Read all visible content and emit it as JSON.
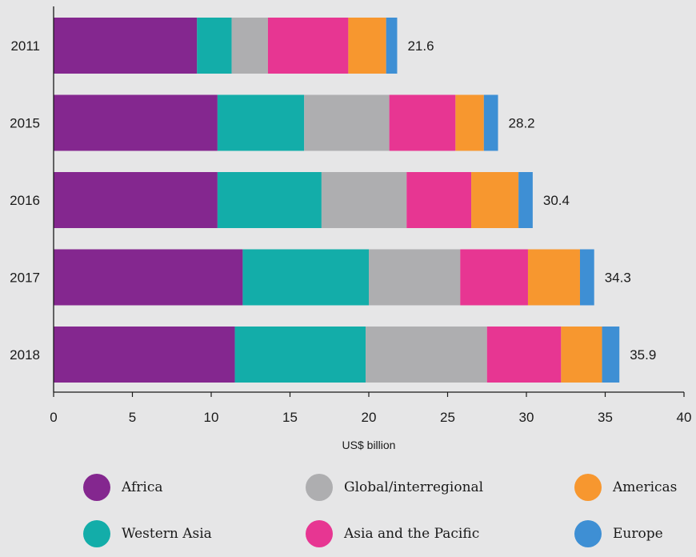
{
  "chart_data": {
    "type": "bar",
    "orientation": "horizontal",
    "stacked": true,
    "categories": [
      "2011",
      "2015",
      "2016",
      "2017",
      "2018"
    ],
    "series": [
      {
        "name": "Africa",
        "color": "#84278f",
        "values": [
          9.1,
          10.4,
          10.4,
          12.0,
          11.5
        ]
      },
      {
        "name": "Western Asia",
        "color": "#13ada9",
        "values": [
          2.2,
          5.5,
          6.6,
          8.0,
          8.3
        ]
      },
      {
        "name": "Global/interregional",
        "color": "#aeaeb0",
        "values": [
          2.3,
          5.4,
          5.4,
          5.8,
          7.7
        ]
      },
      {
        "name": "Asia and the Pacific",
        "color": "#e73692",
        "values": [
          5.1,
          4.2,
          4.1,
          4.3,
          4.7
        ]
      },
      {
        "name": "Americas",
        "color": "#f7972f",
        "values": [
          2.4,
          1.8,
          3.0,
          3.3,
          2.6
        ]
      },
      {
        "name": "Europe",
        "color": "#3e8fd4",
        "values": [
          0.7,
          0.9,
          0.9,
          0.9,
          1.1
        ]
      }
    ],
    "totals": [
      "21.6",
      "28.2",
      "30.4",
      "34.3",
      "35.9"
    ],
    "xlabel": "US$ billion",
    "xlim": [
      0,
      40
    ],
    "xticks": [
      "0",
      "5",
      "10",
      "15",
      "20",
      "25",
      "30",
      "35",
      "40"
    ],
    "grid": false,
    "legend_position": "bottom"
  }
}
